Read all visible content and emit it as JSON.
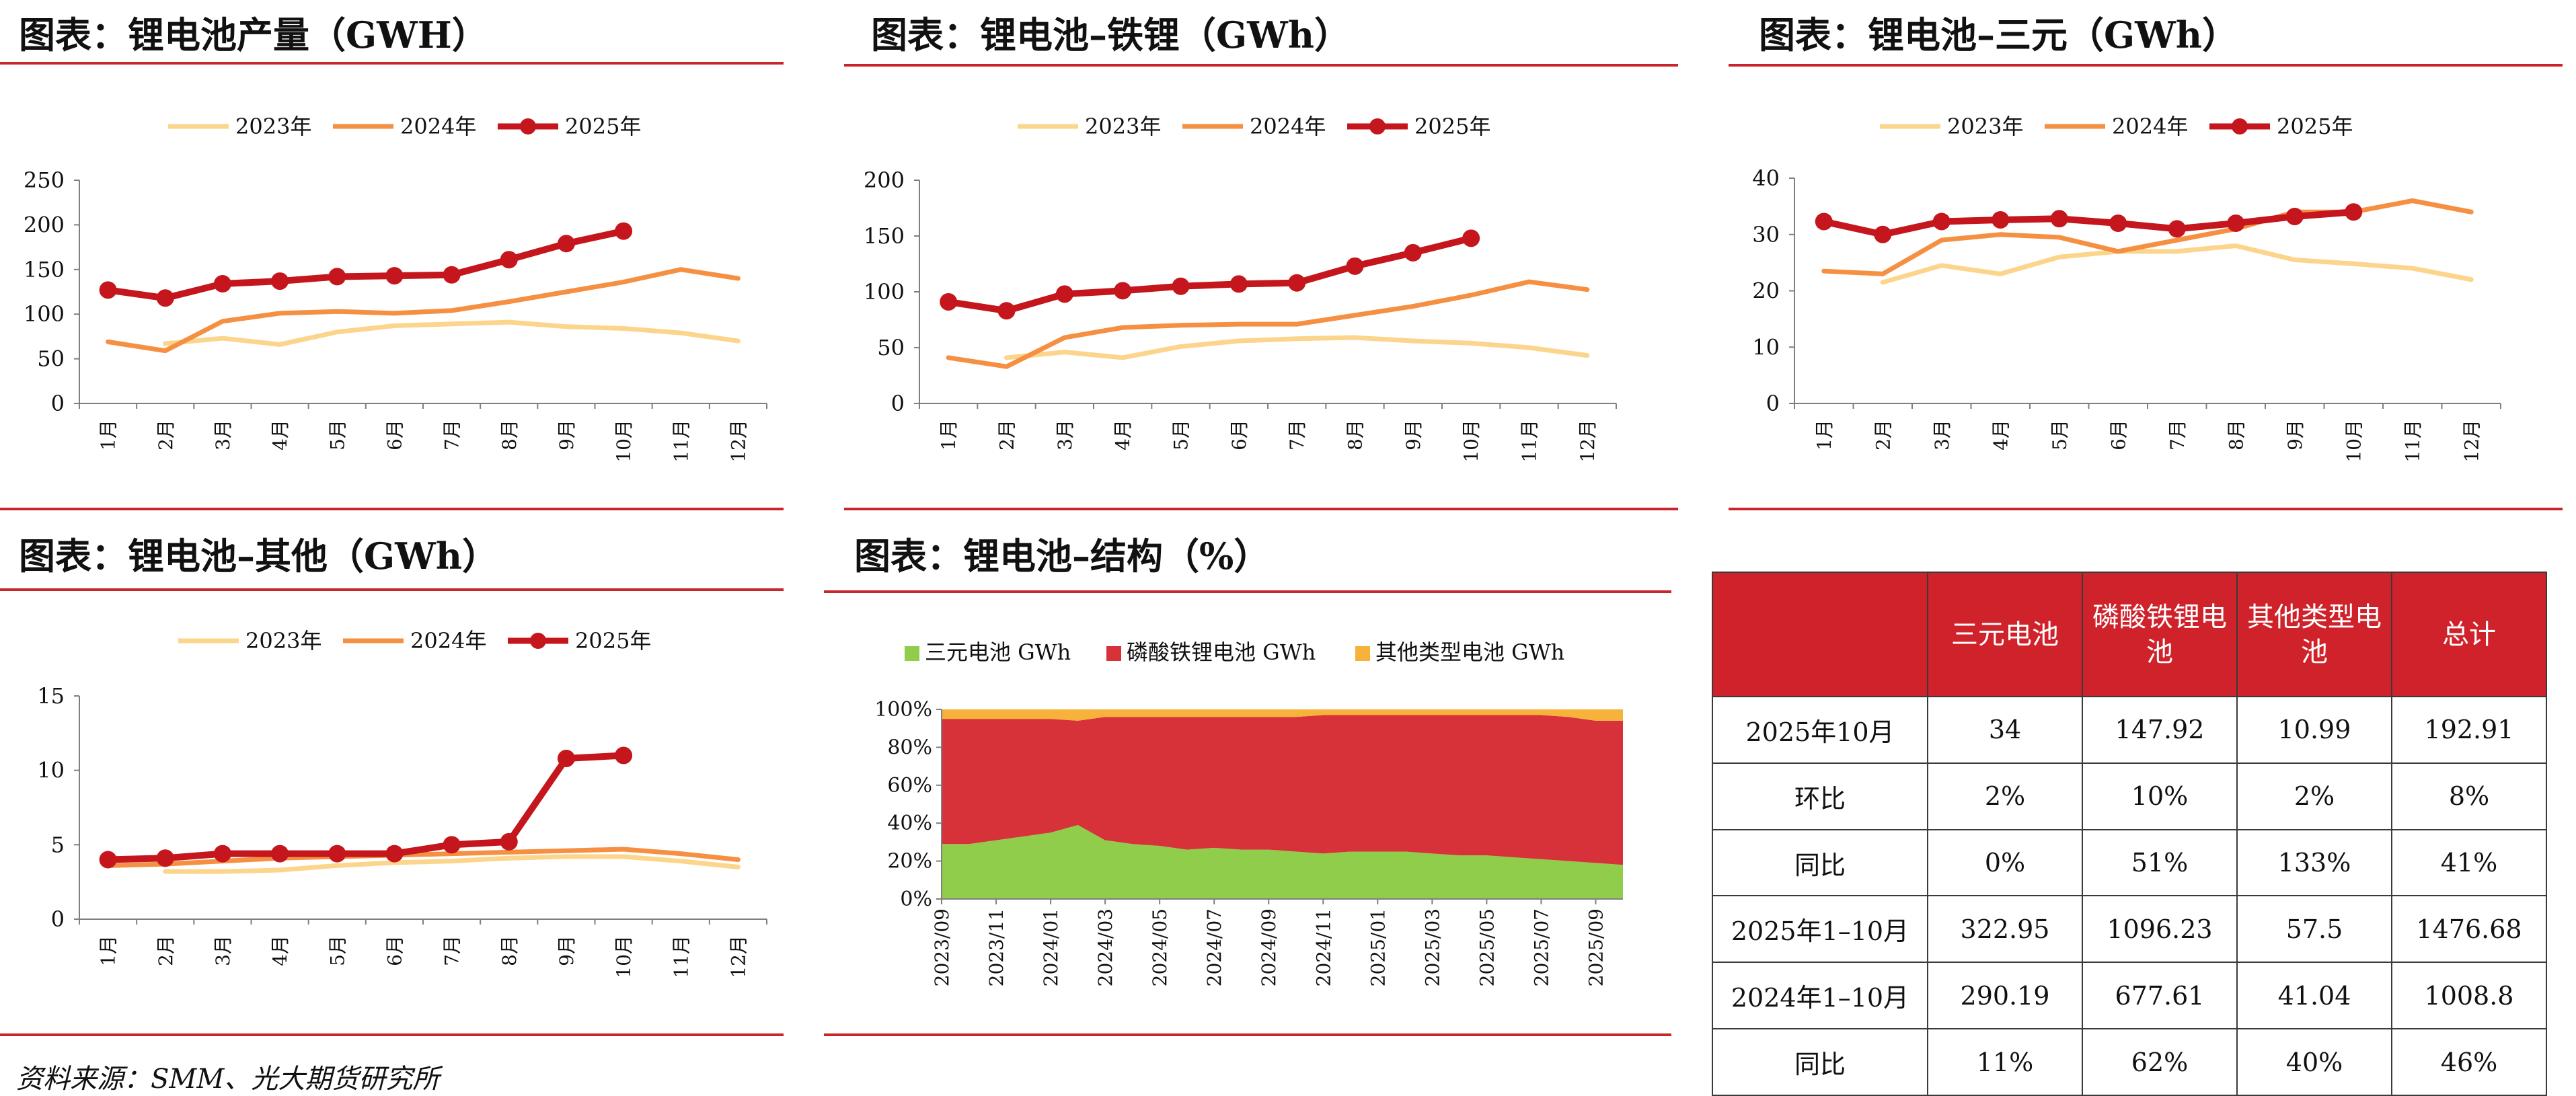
{
  "colors": {
    "y2023": "#fcd58c",
    "y2024": "#f58f42",
    "y2025": "#c4161c",
    "sanyuan": "#8fcd4a",
    "lfp": "#d7313a",
    "other": "#f7b23b",
    "header": "#d0222b",
    "rule": "#c9252c",
    "axis": "#7f7f7f"
  },
  "chart_data": [
    {
      "type": "line",
      "title": "图表：锂电池产量（GWH）",
      "categories": [
        "1月",
        "2月",
        "3月",
        "4月",
        "5月",
        "6月",
        "7月",
        "8月",
        "9月",
        "10月",
        "11月",
        "12月"
      ],
      "series": [
        {
          "name": "2023年",
          "values": [
            null,
            67,
            73,
            66,
            80,
            87,
            89,
            91,
            86,
            84,
            79,
            70
          ]
        },
        {
          "name": "2024年",
          "values": [
            69,
            59,
            92,
            101,
            103,
            101,
            104,
            114,
            125,
            136,
            150,
            140
          ]
        },
        {
          "name": "2025年",
          "values": [
            127,
            118,
            134,
            137,
            142,
            143,
            144,
            161,
            179,
            193,
            null,
            null
          ]
        }
      ],
      "ylim": [
        0,
        250
      ],
      "yticks": [
        0,
        50,
        100,
        150,
        200,
        250
      ],
      "legend": "top"
    },
    {
      "type": "line",
      "title": "图表：锂电池–铁锂（GWh）",
      "categories": [
        "1月",
        "2月",
        "3月",
        "4月",
        "5月",
        "6月",
        "7月",
        "8月",
        "9月",
        "10月",
        "11月",
        "12月"
      ],
      "series": [
        {
          "name": "2023年",
          "values": [
            null,
            41,
            46,
            41,
            51,
            56,
            58,
            59,
            56,
            54,
            50,
            43
          ]
        },
        {
          "name": "2024年",
          "values": [
            41,
            33,
            59,
            68,
            70,
            71,
            71,
            79,
            87,
            97,
            109,
            102
          ]
        },
        {
          "name": "2025年",
          "values": [
            91,
            83,
            98,
            101,
            105,
            107,
            108,
            123,
            135,
            148,
            null,
            null
          ]
        }
      ],
      "ylim": [
        0,
        200
      ],
      "yticks": [
        0,
        50,
        100,
        150,
        200
      ],
      "legend": "top"
    },
    {
      "type": "line",
      "title": "图表：锂电池–三元（GWh）",
      "categories": [
        "1月",
        "2月",
        "3月",
        "4月",
        "5月",
        "6月",
        "7月",
        "8月",
        "9月",
        "10月",
        "11月",
        "12月"
      ],
      "series": [
        {
          "name": "2023年",
          "values": [
            null,
            21.5,
            24.5,
            23,
            26,
            27,
            27,
            28,
            25.5,
            24.8,
            24,
            22
          ]
        },
        {
          "name": "2024年",
          "values": [
            23.5,
            23,
            29,
            30,
            29.5,
            27,
            29,
            31,
            34,
            34,
            36,
            34
          ]
        },
        {
          "name": "2025年",
          "values": [
            32.3,
            30,
            32.3,
            32.6,
            32.8,
            32,
            31,
            32,
            33.2,
            34,
            null,
            null
          ]
        }
      ],
      "ylim": [
        0,
        40
      ],
      "yticks": [
        0,
        10,
        20,
        30,
        40
      ],
      "legend": "top"
    },
    {
      "type": "line",
      "title": "图表：锂电池–其他（GWh）",
      "categories": [
        "1月",
        "2月",
        "3月",
        "4月",
        "5月",
        "6月",
        "7月",
        "8月",
        "9月",
        "10月",
        "11月",
        "12月"
      ],
      "series": [
        {
          "name": "2023年",
          "values": [
            null,
            3.2,
            3.2,
            3.3,
            3.6,
            3.8,
            3.9,
            4.1,
            4.2,
            4.2,
            3.9,
            3.5
          ]
        },
        {
          "name": "2024年",
          "values": [
            3.6,
            3.7,
            3.9,
            4.1,
            4.2,
            4.3,
            4.4,
            4.5,
            4.6,
            4.7,
            4.4,
            4.0
          ]
        },
        {
          "name": "2025年",
          "values": [
            4.0,
            4.1,
            4.4,
            4.4,
            4.4,
            4.4,
            5.0,
            5.2,
            10.8,
            11.0,
            null,
            null
          ]
        }
      ],
      "ylim": [
        0,
        15
      ],
      "yticks": [
        0,
        5,
        10,
        15
      ],
      "legend": "top"
    },
    {
      "type": "area",
      "title": "图表：锂电池–结构（%）",
      "x": [
        "2023/09",
        "2023/10",
        "2023/11",
        "2023/12",
        "2024/01",
        "2024/02",
        "2024/03",
        "2024/04",
        "2024/05",
        "2024/06",
        "2024/07",
        "2024/08",
        "2024/09",
        "2024/10",
        "2024/11",
        "2024/12",
        "2025/01",
        "2025/02",
        "2025/03",
        "2025/04",
        "2025/05",
        "2025/06",
        "2025/07",
        "2025/08",
        "2025/09",
        "2025/10"
      ],
      "xticks": [
        "2023/09",
        "2023/11",
        "2024/01",
        "2024/03",
        "2024/05",
        "2024/07",
        "2024/09",
        "2024/11",
        "2025/01",
        "2025/03",
        "2025/05",
        "2025/07",
        "2025/09"
      ],
      "series": [
        {
          "name": "三元电池 GWh",
          "values": [
            29,
            29,
            31,
            33,
            35,
            39,
            31,
            29,
            28,
            26,
            27,
            26,
            26,
            25,
            24,
            25,
            25,
            25,
            24,
            23,
            23,
            22,
            21,
            20,
            19,
            18
          ]
        },
        {
          "name": "磷酸铁锂电池 GWh",
          "values": [
            66,
            66,
            64,
            62,
            60,
            55,
            65,
            67,
            68,
            70,
            69,
            70,
            70,
            71,
            73,
            72,
            72,
            72,
            73,
            74,
            74,
            75,
            76,
            76,
            75,
            76
          ]
        },
        {
          "name": "其他类型电池 GWh",
          "values": [
            5,
            5,
            5,
            5,
            5,
            6,
            4,
            4,
            4,
            4,
            4,
            4,
            4,
            4,
            3,
            3,
            3,
            3,
            3,
            3,
            3,
            3,
            3,
            4,
            6,
            6
          ]
        }
      ],
      "ylim": [
        0,
        100
      ],
      "yticks": [
        "0%",
        "20%",
        "40%",
        "60%",
        "80%",
        "100%"
      ],
      "legend": "top",
      "stacked": true
    }
  ],
  "table": {
    "headers": [
      "",
      "三元电池",
      "磷酸铁锂电池",
      "其他类型电池",
      "总计"
    ],
    "rows": [
      [
        "2025年10月",
        "34",
        "147.92",
        "10.99",
        "192.91"
      ],
      [
        "环比",
        "2%",
        "10%",
        "2%",
        "8%"
      ],
      [
        "同比",
        "0%",
        "51%",
        "133%",
        "41%"
      ],
      [
        "2025年1–10月",
        "322.95",
        "1096.23",
        "57.5",
        "1476.68"
      ],
      [
        "2024年1–10月",
        "290.19",
        "677.61",
        "41.04",
        "1008.8"
      ],
      [
        "同比",
        "11%",
        "62%",
        "40%",
        "46%"
      ]
    ]
  },
  "source": "资料来源：SMM、光大期货研究所"
}
